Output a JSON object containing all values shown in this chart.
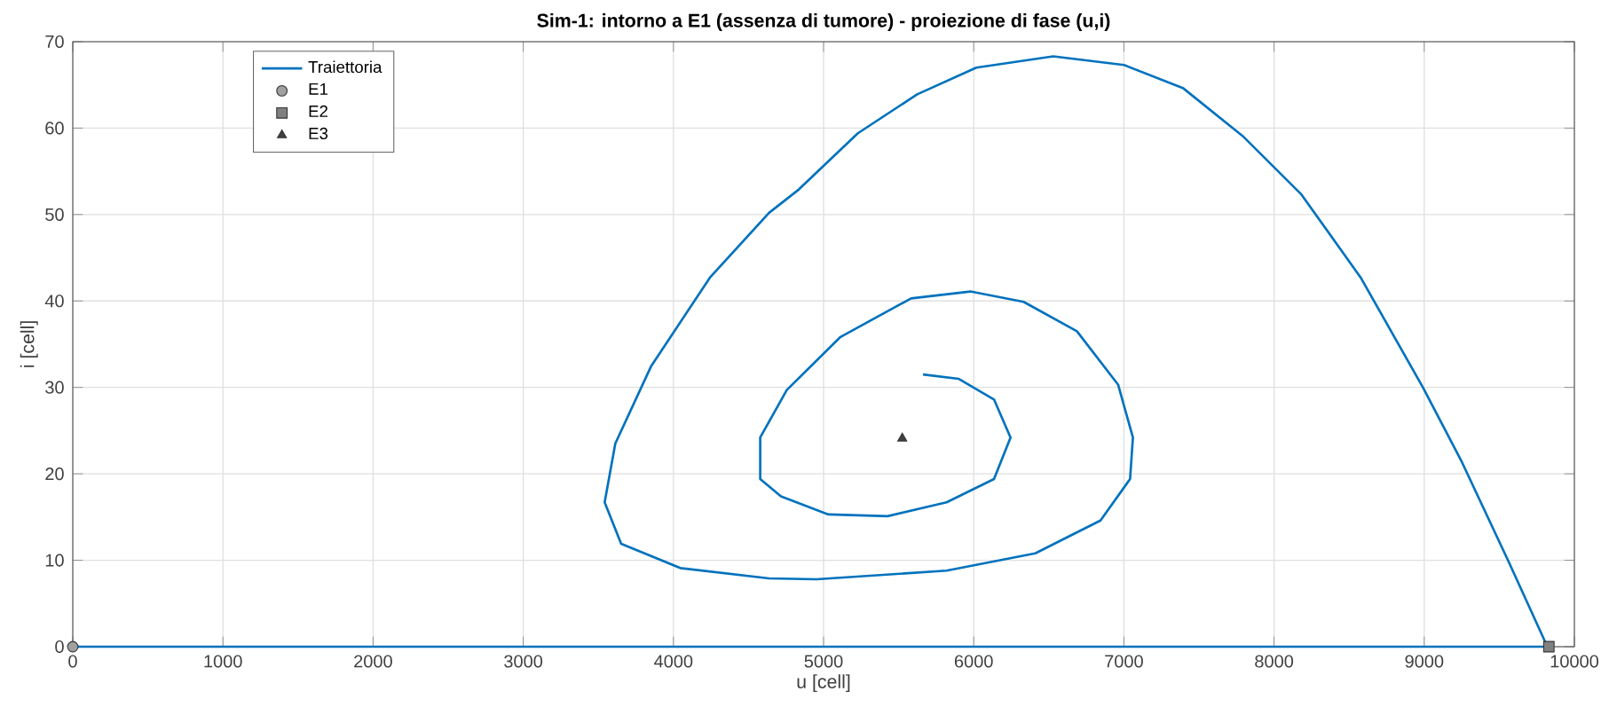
{
  "chart_data": {
    "type": "line",
    "title": "Sim-1: intorno a E1 (assenza di tumore) - proiezione di fase (u,i)",
    "xlabel": "u  [cell]",
    "ylabel": "i  [cell]",
    "xlim": [
      0,
      10000
    ],
    "ylim": [
      0,
      70
    ],
    "xticks": [
      0,
      1000,
      2000,
      3000,
      4000,
      5000,
      6000,
      7000,
      8000,
      9000,
      10000
    ],
    "yticks": [
      0,
      10,
      20,
      30,
      40,
      50,
      60,
      70
    ],
    "grid": true,
    "legend": "top left",
    "series": [
      {
        "name": "Traiettoria",
        "marker": "none",
        "line_style": "solid",
        "color": "#0072bd",
        "x": [
          0,
          5000,
          9820,
          9563,
          9247,
          8991,
          8577,
          8183,
          7790,
          7396,
          7001,
          6529,
          6017,
          5623,
          5228,
          4835,
          4637,
          4243,
          3850,
          3613,
          3542,
          3652,
          4046,
          4637,
          4953,
          5819,
          6410,
          6844,
          7041,
          7060,
          6962,
          6687,
          6332,
          5977,
          5583,
          5110,
          4755,
          4578,
          4578,
          4716,
          5032,
          5426,
          5819,
          6135,
          6245,
          6135,
          5898,
          5662
        ],
        "values": [
          0,
          0,
          0,
          9.8,
          21.5,
          30.0,
          42.7,
          52.3,
          59.1,
          64.6,
          67.3,
          68.3,
          67.0,
          63.9,
          59.4,
          52.9,
          50.2,
          42.7,
          32.4,
          23.5,
          16.7,
          11.9,
          9.1,
          7.9,
          7.8,
          8.8,
          10.8,
          14.6,
          19.4,
          24.2,
          30.3,
          36.5,
          39.9,
          41.1,
          40.3,
          35.8,
          29.7,
          24.2,
          19.4,
          17.4,
          15.3,
          15.1,
          16.7,
          19.4,
          24.2,
          28.6,
          31.0,
          31.5
        ]
      },
      {
        "name": "E1",
        "type": "scatter",
        "marker": "circle",
        "color": "#a0a0a0",
        "x": [
          0
        ],
        "values": [
          0
        ]
      },
      {
        "name": "E2",
        "type": "scatter",
        "marker": "square",
        "color": "#808080",
        "x": [
          9830
        ],
        "values": [
          0
        ]
      },
      {
        "name": "E3",
        "type": "scatter",
        "marker": "triangle",
        "color": "#404040",
        "x": [
          5524
        ],
        "values": [
          24.1
        ]
      }
    ]
  }
}
